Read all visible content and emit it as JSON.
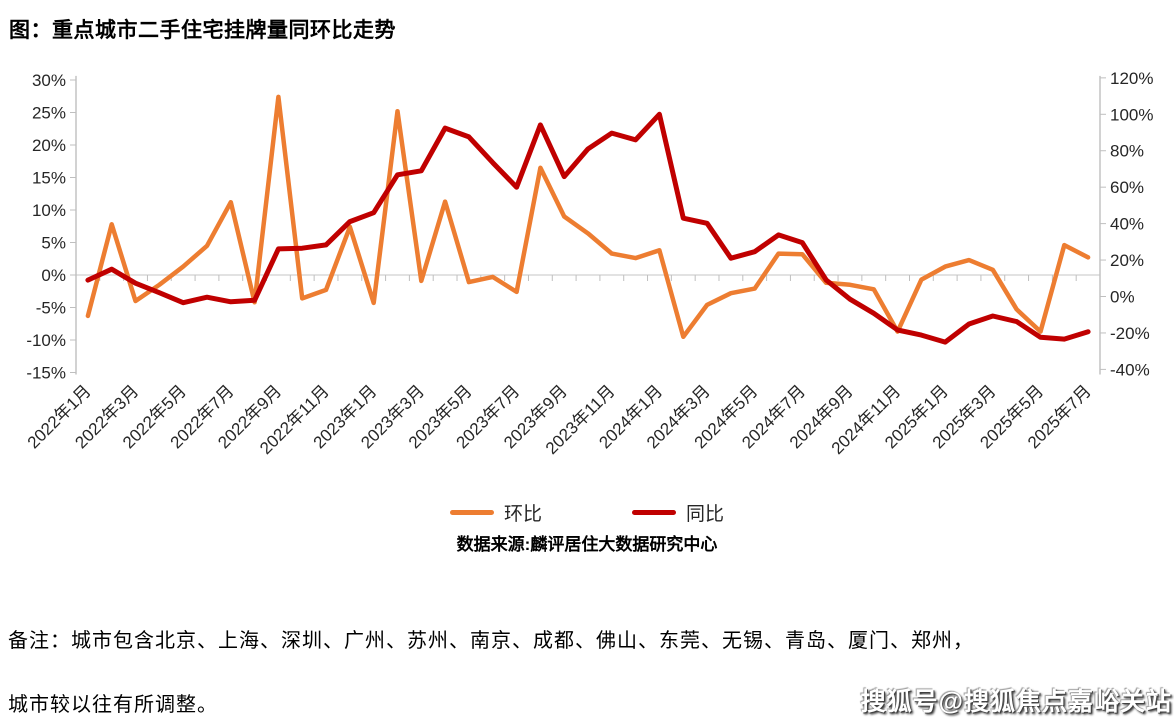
{
  "title": "图：重点城市二手住宅挂牌量同环比走势",
  "source_note": "数据来源:麟评居住大数据研究中心",
  "footnote_line1": "备注：城市包含北京、上海、深圳、广州、苏州、南京、成都、佛山、东莞、无锡、青岛、厦门、郑州，",
  "footnote_line2": "城市较以往有所调整。",
  "watermark": "搜狐号@搜狐焦点嘉峪关站",
  "legend": {
    "items": [
      "环比",
      "同比"
    ]
  },
  "chart_data": {
    "type": "line",
    "title": "重点城市二手住宅挂牌量同环比走势",
    "categories": [
      "2022年1月",
      "2022年2月",
      "2022年3月",
      "2022年4月",
      "2022年5月",
      "2022年6月",
      "2022年7月",
      "2022年8月",
      "2022年9月",
      "2022年10月",
      "2022年11月",
      "2022年12月",
      "2023年1月",
      "2023年2月",
      "2023年3月",
      "2023年4月",
      "2023年5月",
      "2023年6月",
      "2023年7月",
      "2023年8月",
      "2023年9月",
      "2023年10月",
      "2023年11月",
      "2023年12月",
      "2024年1月",
      "2024年2月",
      "2024年3月",
      "2024年4月",
      "2024年5月",
      "2024年6月",
      "2024年7月",
      "2024年8月",
      "2024年9月",
      "2024年10月",
      "2024年11月",
      "2024年12月",
      "2025年1月",
      "2025年2月",
      "2025年3月",
      "2025年4月",
      "2025年5月",
      "2025年6月",
      "2025年7月"
    ],
    "x_tick_step": 2,
    "series": [
      {
        "name": "环比",
        "axis": "left",
        "color": "#ED7D31",
        "values": [
          -6.3,
          7.8,
          -4.0,
          -1.5,
          1.3,
          4.5,
          11.2,
          -4.2,
          27.4,
          -3.6,
          -2.3,
          7.4,
          -4.3,
          25.2,
          -0.9,
          11.3,
          -1.1,
          -0.3,
          -2.6,
          16.5,
          9.0,
          6.4,
          3.3,
          2.6,
          3.8,
          -9.5,
          -4.6,
          -2.8,
          -2.1,
          3.3,
          3.2,
          -1.2,
          -1.5,
          -2.2,
          -8.7,
          -0.7,
          1.3,
          2.3,
          0.8,
          -5.3,
          -8.7,
          4.6,
          2.7
        ]
      },
      {
        "name": "同比",
        "axis": "right",
        "color": "#C00000",
        "values": [
          9.0,
          15.0,
          7.3,
          2.1,
          -3.4,
          -0.4,
          -2.9,
          -2.1,
          26.1,
          26.5,
          28.3,
          41.1,
          46.0,
          66.8,
          69.0,
          92.4,
          87.6,
          73.5,
          60.0,
          94.2,
          65.8,
          81.0,
          89.7,
          86.0,
          100.0,
          43.0,
          40.2,
          21.0,
          24.6,
          33.8,
          29.6,
          9.1,
          -1.5,
          -9.2,
          -18.4,
          -21.2,
          -25.0,
          -15.1,
          -10.7,
          -13.8,
          -22.4,
          -23.4,
          -19.3
        ]
      }
    ],
    "left_axis": {
      "min": -15,
      "max": 30,
      "step": 5,
      "suffix": "%",
      "tick_labels": [
        "30%",
        "25%",
        "20%",
        "15%",
        "10%",
        "5%",
        "0%",
        "-5%",
        "-10%",
        "-15%"
      ]
    },
    "right_axis": {
      "min": -40,
      "max": 120,
      "step": 20,
      "suffix": "%",
      "tick_labels": [
        "120%",
        "100%",
        "80%",
        "60%",
        "40%",
        "20%",
        "0%",
        "-20%",
        "-40%"
      ]
    },
    "grid": {
      "zero_line_only": true
    },
    "legend_position": "bottom",
    "colors": {
      "axis_line": "#BFBFBF",
      "zero_line": "#D9D9D9",
      "tick_text": "#262626"
    }
  }
}
